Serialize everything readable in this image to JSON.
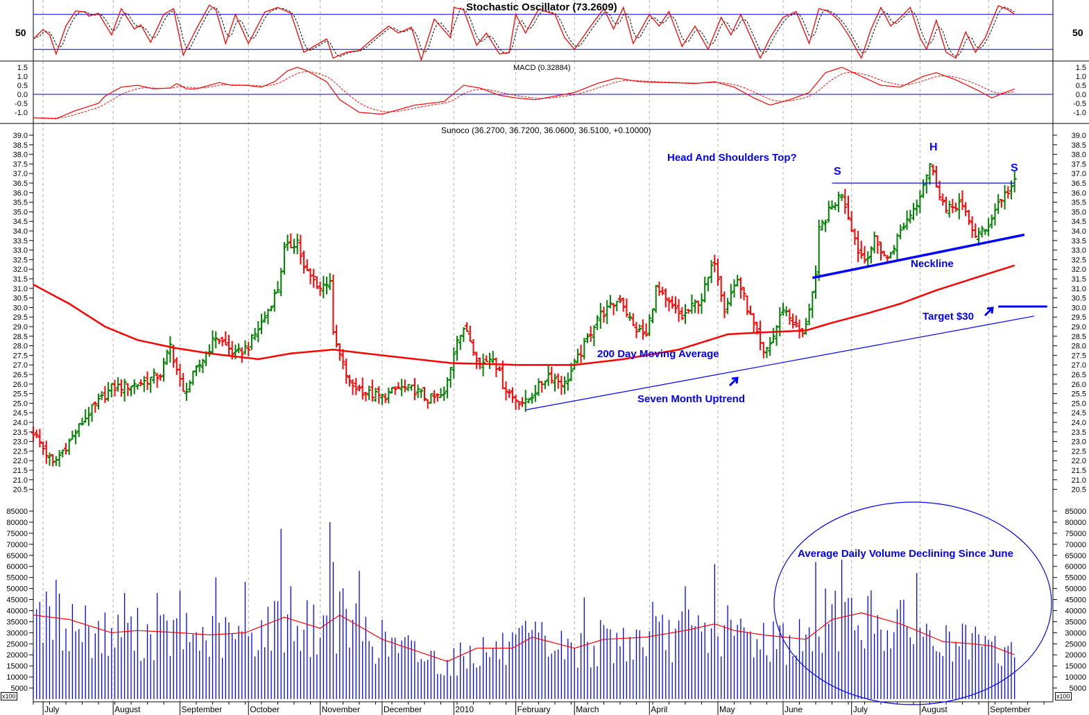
{
  "chart_data": {
    "type": "ohlc-stock",
    "title": "Sunoco (36.2700, 36.7200, 36.0600, 36.5100, +0.10000)",
    "colors": {
      "up": "#008000",
      "down": "#ff0000",
      "ma": "#ff0000",
      "volume": "#0000ff",
      "annotation": "#0000ff",
      "grid": "#b0b0b0"
    },
    "x_ticks": [
      {
        "day": 3,
        "label": "July"
      },
      {
        "day": 24.5,
        "label": "August"
      },
      {
        "day": 45,
        "label": "September"
      },
      {
        "day": 66,
        "label": "October"
      },
      {
        "day": 88,
        "label": "November"
      },
      {
        "day": 107,
        "label": "December"
      },
      {
        "day": 129,
        "label": "2010"
      },
      {
        "day": 148,
        "label": "February"
      },
      {
        "day": 166,
        "label": "March"
      },
      {
        "day": 189,
        "label": "April"
      },
      {
        "day": 210,
        "label": "May"
      },
      {
        "day": 230,
        "label": "June"
      },
      {
        "day": 251,
        "label": "July"
      },
      {
        "day": 272,
        "label": "August"
      },
      {
        "day": 293,
        "label": "September"
      }
    ],
    "stochastic": {
      "title": "Stochastic Oscillator (73.2609)",
      "tick_label": "50",
      "levels": [
        20,
        80
      ],
      "k": [
        [
          0,
          38
        ],
        [
          3,
          54
        ],
        [
          5,
          45
        ],
        [
          7,
          12
        ],
        [
          10,
          60
        ],
        [
          13,
          86
        ],
        [
          16,
          84
        ],
        [
          17,
          77
        ],
        [
          20,
          82
        ],
        [
          24,
          45
        ],
        [
          27,
          90
        ],
        [
          31,
          55
        ],
        [
          33,
          62
        ],
        [
          36,
          32
        ],
        [
          40,
          80
        ],
        [
          43,
          90
        ],
        [
          46,
          10
        ],
        [
          50,
          55
        ],
        [
          54,
          96
        ],
        [
          56,
          88
        ],
        [
          59,
          30
        ],
        [
          62,
          80
        ],
        [
          66,
          30
        ],
        [
          71,
          84
        ],
        [
          75,
          92
        ],
        [
          79,
          82
        ],
        [
          83,
          15
        ],
        [
          90,
          38
        ],
        [
          92,
          5
        ],
        [
          96,
          15
        ],
        [
          100,
          18
        ],
        [
          105,
          42
        ],
        [
          109,
          60
        ],
        [
          112,
          48
        ],
        [
          116,
          58
        ],
        [
          119,
          2
        ],
        [
          123,
          72
        ],
        [
          128,
          40
        ],
        [
          129,
          92
        ],
        [
          132,
          88
        ],
        [
          136,
          27
        ],
        [
          139,
          48
        ],
        [
          143,
          12
        ],
        [
          146,
          15
        ],
        [
          148,
          80
        ],
        [
          151,
          48
        ],
        [
          155,
          89
        ],
        [
          160,
          80
        ],
        [
          163,
          40
        ],
        [
          166,
          20
        ],
        [
          171,
          60
        ],
        [
          175,
          90
        ],
        [
          178,
          55
        ],
        [
          181,
          92
        ],
        [
          184,
          30
        ],
        [
          189,
          80
        ],
        [
          192,
          60
        ],
        [
          195,
          85
        ],
        [
          199,
          25
        ],
        [
          203,
          60
        ],
        [
          207,
          20
        ],
        [
          211,
          75
        ],
        [
          214,
          45
        ],
        [
          217,
          80
        ],
        [
          223,
          5
        ],
        [
          226,
          40
        ],
        [
          230,
          75
        ],
        [
          234,
          85
        ],
        [
          238,
          30
        ],
        [
          241,
          90
        ],
        [
          244,
          85
        ],
        [
          247,
          70
        ],
        [
          250,
          45
        ],
        [
          254,
          5
        ],
        [
          257,
          55
        ],
        [
          260,
          92
        ],
        [
          263,
          60
        ],
        [
          266,
          75
        ],
        [
          269,
          92
        ],
        [
          272,
          40
        ],
        [
          274,
          20
        ],
        [
          277,
          70
        ],
        [
          280,
          15
        ],
        [
          283,
          5
        ],
        [
          286,
          50
        ],
        [
          289,
          15
        ],
        [
          292,
          40
        ],
        [
          296,
          95
        ],
        [
          299,
          88
        ],
        [
          301,
          80
        ]
      ]
    },
    "macd": {
      "title": "MACD (0.32884)",
      "tick_labels": [
        "1.5",
        "1.0",
        "0.5",
        "0.0",
        "-0.5",
        "-1.0"
      ],
      "tick_values": [
        1.5,
        1.0,
        0.5,
        0.0,
        -0.5,
        -1.0
      ],
      "line": [
        [
          0,
          -1.3
        ],
        [
          7,
          -1.35
        ],
        [
          13,
          -0.9
        ],
        [
          20,
          -0.5
        ],
        [
          22,
          -0.1
        ],
        [
          27,
          0.4
        ],
        [
          32,
          0.5
        ],
        [
          37,
          0.3
        ],
        [
          42,
          0.35
        ],
        [
          44,
          0.6
        ],
        [
          47,
          0.3
        ],
        [
          50,
          0.3
        ],
        [
          57,
          0.65
        ],
        [
          61,
          0.5
        ],
        [
          65,
          0.5
        ],
        [
          70,
          0.4
        ],
        [
          74,
          0.7
        ],
        [
          78,
          1.3
        ],
        [
          81,
          1.5
        ],
        [
          84,
          1.3
        ],
        [
          90,
          0.7
        ],
        [
          94,
          -0.3
        ],
        [
          100,
          -1.0
        ],
        [
          107,
          -1.1
        ],
        [
          117,
          -0.6
        ],
        [
          126,
          -0.4
        ],
        [
          132,
          0.5
        ],
        [
          137,
          0.35
        ],
        [
          143,
          -0.05
        ],
        [
          148,
          -0.2
        ],
        [
          154,
          -0.3
        ],
        [
          160,
          -0.1
        ],
        [
          166,
          0.1
        ],
        [
          173,
          0.6
        ],
        [
          179,
          0.9
        ],
        [
          186,
          0.7
        ],
        [
          194,
          0.65
        ],
        [
          203,
          0.6
        ],
        [
          209,
          0.7
        ],
        [
          215,
          0.4
        ],
        [
          221,
          -0.2
        ],
        [
          226,
          -0.6
        ],
        [
          232,
          -0.3
        ],
        [
          238,
          0.1
        ],
        [
          243,
          1.2
        ],
        [
          248,
          1.5
        ],
        [
          254,
          1.0
        ],
        [
          260,
          0.5
        ],
        [
          266,
          0.4
        ],
        [
          273,
          1.0
        ],
        [
          277,
          1.2
        ],
        [
          283,
          0.8
        ],
        [
          290,
          0.2
        ],
        [
          294,
          -0.2
        ],
        [
          298,
          0.1
        ],
        [
          301,
          0.3
        ]
      ]
    },
    "price": {
      "ylim": [
        20.5,
        39.0
      ],
      "tick_labels": [
        "39.0",
        "38.5",
        "38.0",
        "37.5",
        "37.0",
        "36.5",
        "36.0",
        "35.5",
        "35.0",
        "34.5",
        "34.0",
        "33.5",
        "33.0",
        "32.5",
        "32.0",
        "31.5",
        "31.0",
        "30.5",
        "30.0",
        "29.5",
        "29.0",
        "28.5",
        "28.0",
        "27.5",
        "27.0",
        "26.5",
        "26.0",
        "25.5",
        "25.0",
        "24.5",
        "24.0",
        "23.5",
        "23.0",
        "22.5",
        "22.0",
        "21.5",
        "21.0",
        "20.5"
      ],
      "close": [
        [
          0,
          23.5
        ],
        [
          6,
          21.8
        ],
        [
          11,
          23
        ],
        [
          17,
          24.5
        ],
        [
          24,
          25.8
        ],
        [
          32,
          26
        ],
        [
          39,
          26.5
        ],
        [
          42,
          28
        ],
        [
          46,
          25.5
        ],
        [
          51,
          27
        ],
        [
          56,
          28.5
        ],
        [
          62,
          27.5
        ],
        [
          66,
          28
        ],
        [
          71,
          29.5
        ],
        [
          75,
          31
        ],
        [
          77,
          33
        ],
        [
          81,
          33.5
        ],
        [
          83,
          32
        ],
        [
          88,
          31
        ],
        [
          91,
          31.5
        ],
        [
          92,
          28.5
        ],
        [
          94,
          27.5
        ],
        [
          97,
          26
        ],
        [
          103,
          25.5
        ],
        [
          107,
          25.3
        ],
        [
          112,
          25.8
        ],
        [
          117,
          25.7
        ],
        [
          121,
          25.2
        ],
        [
          126,
          25.4
        ],
        [
          130,
          28.5
        ],
        [
          133,
          28.8
        ],
        [
          137,
          27
        ],
        [
          141,
          27.5
        ],
        [
          144,
          26
        ],
        [
          147,
          25.3
        ],
        [
          151,
          25
        ],
        [
          158,
          26.5
        ],
        [
          163,
          26
        ],
        [
          169,
          28
        ],
        [
          173,
          29.5
        ],
        [
          177,
          30
        ],
        [
          180,
          30.5
        ],
        [
          184,
          29
        ],
        [
          188,
          28.5
        ],
        [
          191,
          31
        ],
        [
          194,
          30.3
        ],
        [
          199,
          29.5
        ],
        [
          205,
          30.5
        ],
        [
          209,
          32.5
        ],
        [
          212,
          30
        ],
        [
          216,
          31.5
        ],
        [
          221,
          29
        ],
        [
          224,
          27.5
        ],
        [
          227,
          28.5
        ],
        [
          230,
          30
        ],
        [
          236,
          28.5
        ],
        [
          240,
          31.5
        ],
        [
          241,
          34
        ],
        [
          244,
          35
        ],
        [
          248,
          36
        ],
        [
          253,
          33
        ],
        [
          255,
          32.5
        ],
        [
          258,
          33.5
        ],
        [
          262,
          32.5
        ],
        [
          266,
          34
        ],
        [
          271,
          35.5
        ],
        [
          275,
          37.5
        ],
        [
          278,
          36
        ],
        [
          280,
          35
        ],
        [
          284,
          35.5
        ],
        [
          289,
          33.8
        ],
        [
          292,
          34
        ],
        [
          296,
          35.5
        ],
        [
          301,
          36.5
        ]
      ],
      "ma200_label": "200 Day Moving Average",
      "ma200": [
        [
          0,
          31.2
        ],
        [
          11,
          30.2
        ],
        [
          22,
          29.0
        ],
        [
          32,
          28.3
        ],
        [
          43,
          27.9
        ],
        [
          54,
          27.6
        ],
        [
          69,
          27.3
        ],
        [
          79,
          27.6
        ],
        [
          92,
          27.8
        ],
        [
          107,
          27.5
        ],
        [
          128,
          27.1
        ],
        [
          149,
          27.0
        ],
        [
          166,
          27.0
        ],
        [
          181,
          27.3
        ],
        [
          198,
          27.8
        ],
        [
          213,
          28.6
        ],
        [
          224,
          28.7
        ],
        [
          237,
          28.8
        ],
        [
          245,
          29.2
        ],
        [
          256,
          29.7
        ],
        [
          266,
          30.2
        ],
        [
          277,
          30.9
        ],
        [
          288,
          31.5
        ],
        [
          301,
          32.2
        ]
      ]
    },
    "volume": {
      "unit_label": "x100",
      "tick_labels": [
        "85000",
        "80000",
        "75000",
        "70000",
        "65000",
        "60000",
        "55000",
        "50000",
        "45000",
        "40000",
        "35000",
        "30000",
        "25000",
        "20000",
        "15000",
        "10000",
        "5000"
      ],
      "tick_values": [
        85000,
        80000,
        75000,
        70000,
        65000,
        60000,
        55000,
        50000,
        45000,
        40000,
        35000,
        30000,
        25000,
        20000,
        15000,
        10000,
        5000
      ],
      "average": [
        [
          0,
          38000
        ],
        [
          11,
          36000
        ],
        [
          24,
          30000
        ],
        [
          32,
          31000
        ],
        [
          45,
          30000
        ],
        [
          54,
          29000
        ],
        [
          65,
          30000
        ],
        [
          77,
          37000
        ],
        [
          88,
          32000
        ],
        [
          94,
          38000
        ],
        [
          107,
          27000
        ],
        [
          117,
          22000
        ],
        [
          127,
          17000
        ],
        [
          136,
          23000
        ],
        [
          147,
          23000
        ],
        [
          153,
          28000
        ],
        [
          166,
          23000
        ],
        [
          175,
          27000
        ],
        [
          188,
          28000
        ],
        [
          200,
          31000
        ],
        [
          209,
          34000
        ],
        [
          215,
          31000
        ],
        [
          224,
          29000
        ],
        [
          237,
          27000
        ],
        [
          245,
          36000
        ],
        [
          254,
          39000
        ],
        [
          266,
          34000
        ],
        [
          271,
          31000
        ],
        [
          279,
          26000
        ],
        [
          288,
          25000
        ],
        [
          294,
          24000
        ],
        [
          301,
          20000
        ]
      ],
      "spikes": [
        [
          2,
          44000
        ],
        [
          7,
          54000
        ],
        [
          28,
          48000
        ],
        [
          38,
          48000
        ],
        [
          45,
          49000
        ],
        [
          56,
          55000
        ],
        [
          65,
          53000
        ],
        [
          76,
          77000
        ],
        [
          79,
          51000
        ],
        [
          91,
          80000
        ],
        [
          92,
          62000
        ],
        [
          100,
          58000
        ],
        [
          169,
          46000
        ],
        [
          190,
          44000
        ],
        [
          200,
          51000
        ],
        [
          209,
          61000
        ],
        [
          240,
          62000
        ],
        [
          243,
          50000
        ],
        [
          246,
          49000
        ],
        [
          248,
          63000
        ],
        [
          271,
          57000
        ]
      ]
    },
    "annotations": {
      "hs_title": "Head And Shoulders Top?",
      "left_shoulder": "S",
      "head": "H",
      "right_shoulder": "S",
      "neckline": "Neckline",
      "target": "Target $30",
      "uptrend": "Seven Month Uptrend",
      "volume_note": "Average Daily Volume Declining Since June",
      "lines": {
        "uptrend": [
          [
            151,
            24.65
          ],
          [
            307,
            29.55
          ]
        ],
        "neckline": [
          [
            239,
            31.55
          ],
          [
            304,
            33.8
          ]
        ],
        "shoulder": [
          [
            245,
            36.5
          ],
          [
            301,
            36.5
          ]
        ],
        "target": [
          [
            296,
            30.05
          ],
          [
            311,
            30.05
          ]
        ]
      }
    }
  }
}
